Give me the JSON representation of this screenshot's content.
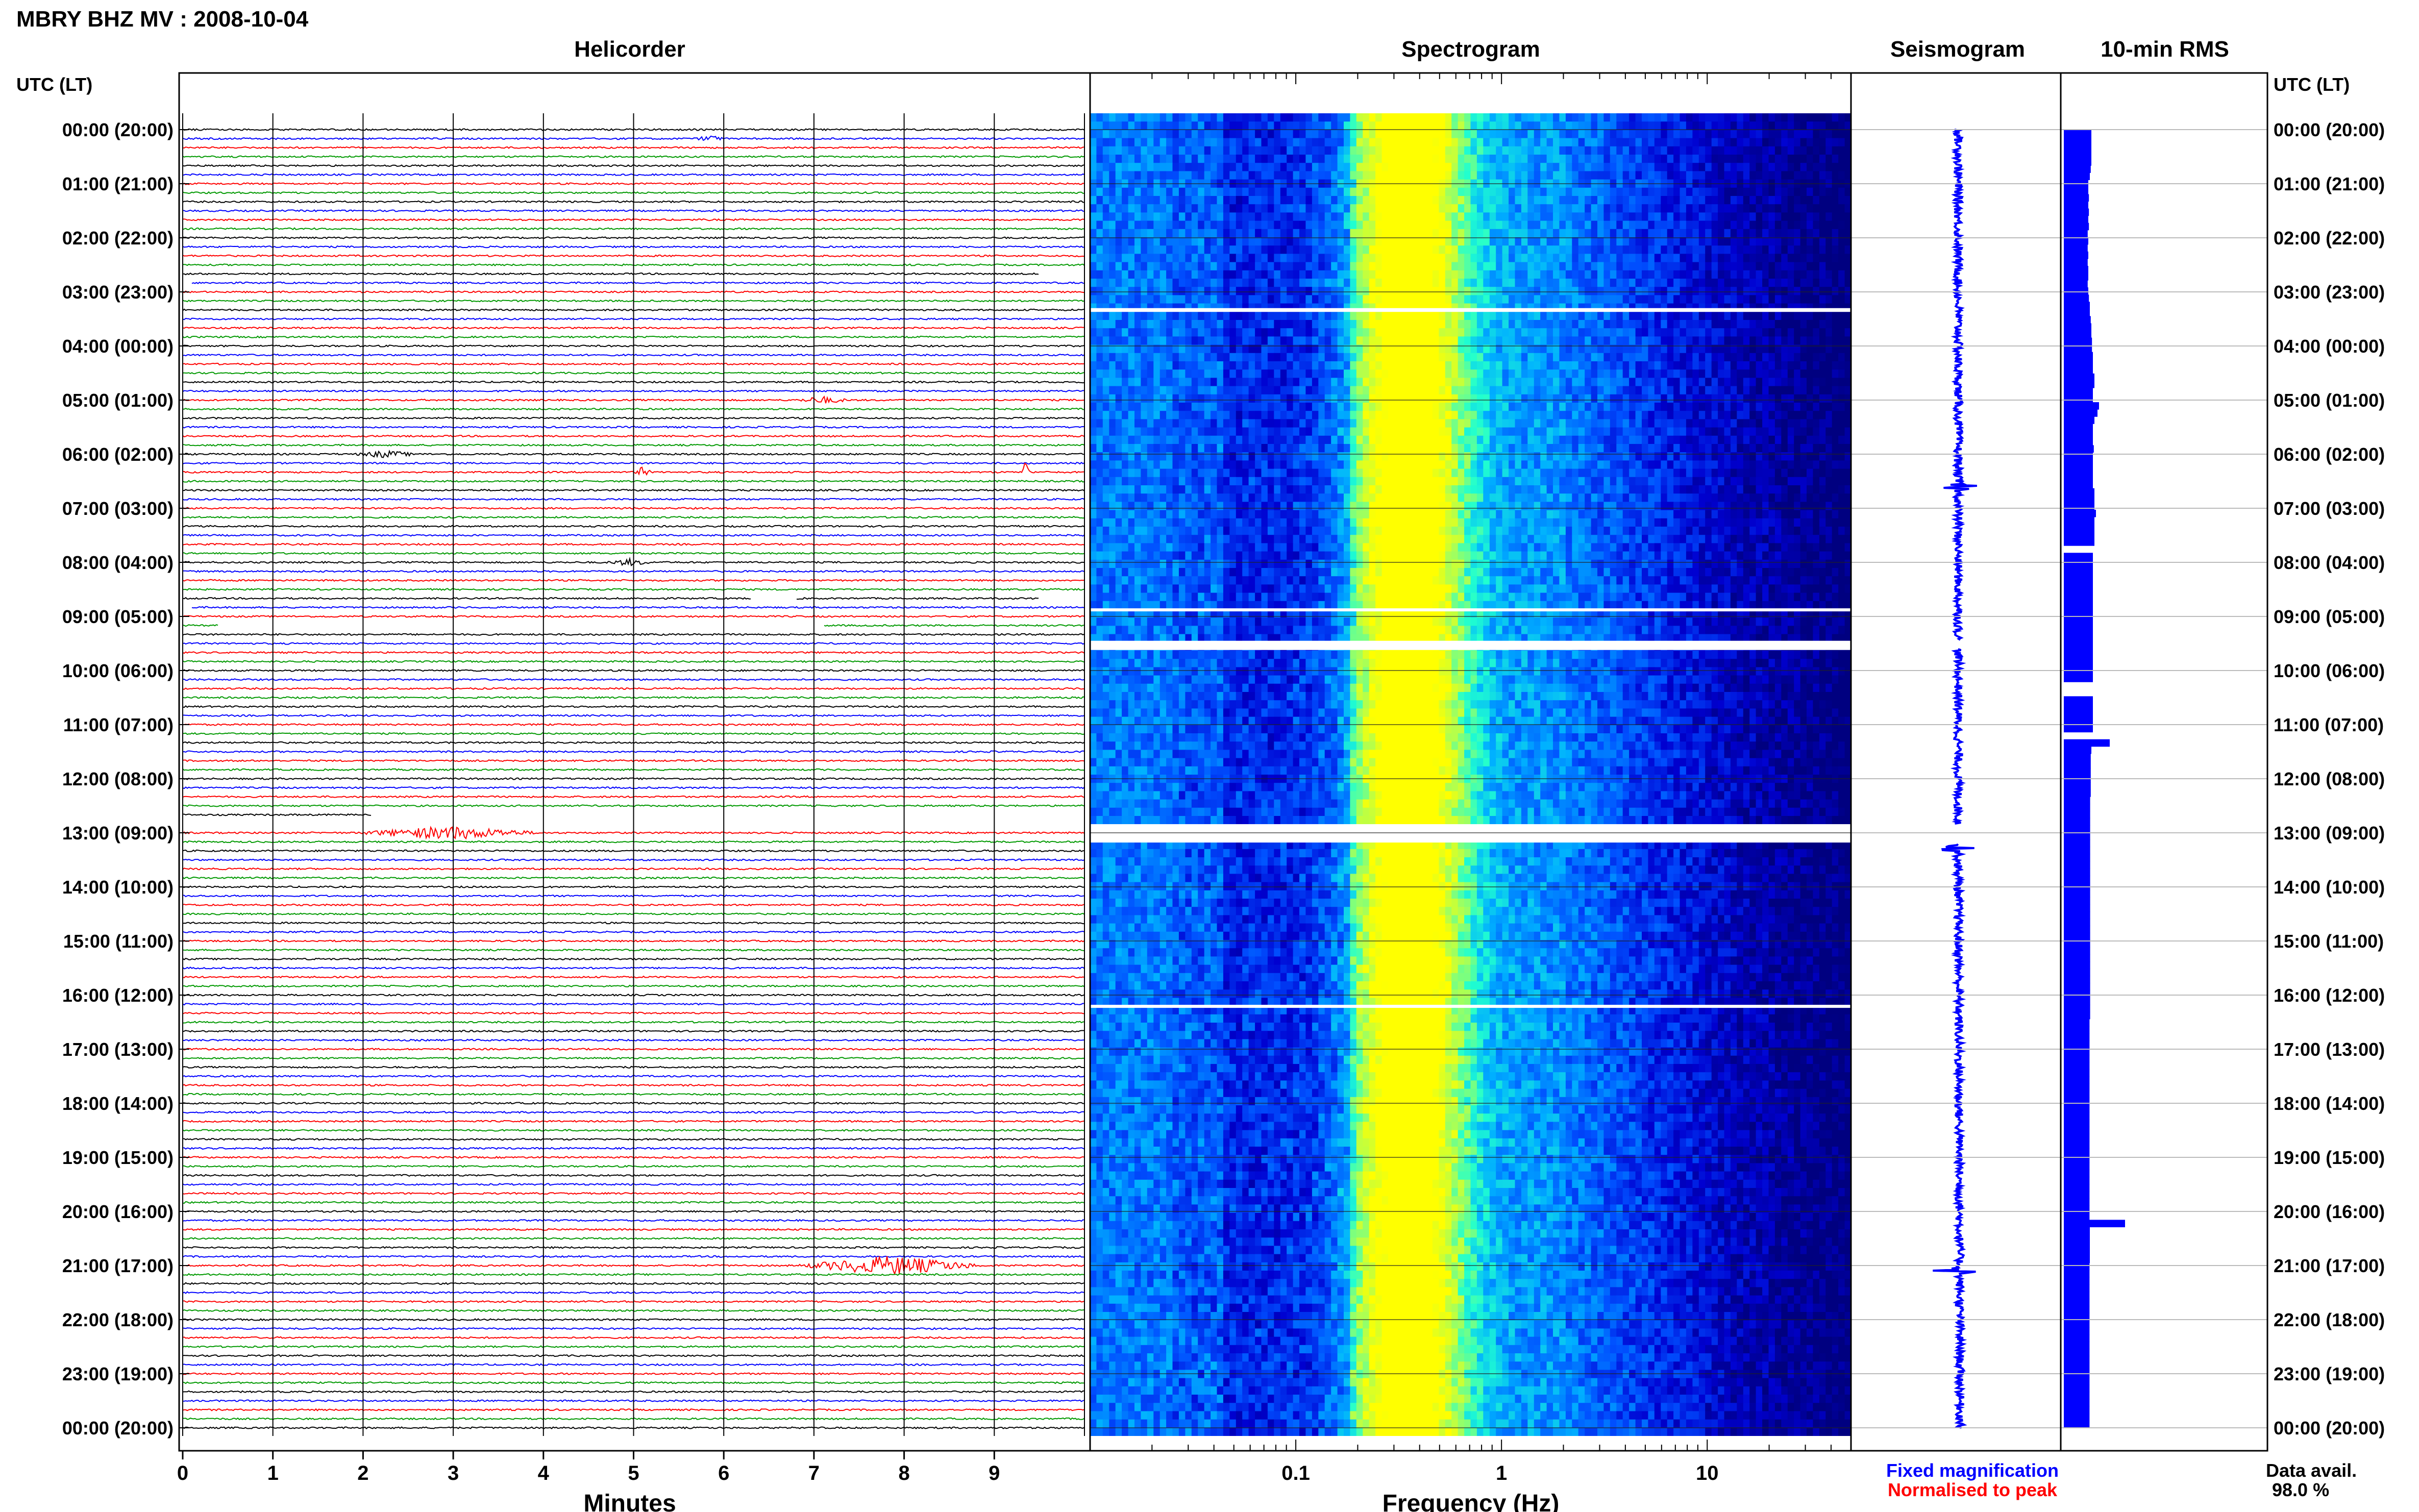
{
  "figure": {
    "title": "MBRY BHZ MV : 2008-10-04",
    "utc_header_left": "UTC (LT)",
    "utc_header_right": "UTC (LT)",
    "legend": {
      "fixed": "Fixed magnification",
      "normalised": "Normalised to peak",
      "fixed_color": "#0000ff",
      "normalised_color": "#ff0000"
    },
    "data_avail_label": "Data avail.",
    "data_avail_value": "98.0 %"
  },
  "chart_data": [
    {
      "type": "line",
      "panel": "Helicorder",
      "title": "Helicorder",
      "xlabel": "Minutes",
      "x_ticks": [
        "0",
        "1",
        "2",
        "3",
        "4",
        "5",
        "6",
        "7",
        "8",
        "9"
      ],
      "xlim": [
        0,
        10
      ],
      "trace_colors": [
        "#000000",
        "#0000ff",
        "#ff0000",
        "#009900"
      ],
      "trace_color_cycle_order": [
        "black",
        "blue",
        "red",
        "green"
      ],
      "row_minutes": 10,
      "rows_per_hour": 6,
      "events": [
        {
          "hour": 0,
          "row": 1,
          "start_min": 5.7,
          "end_min": 6.0,
          "amp": 2
        },
        {
          "hour": 5,
          "row": 0,
          "start_min": 6.8,
          "end_min": 7.4,
          "amp": 2
        },
        {
          "hour": 6,
          "row": 0,
          "start_min": 1.9,
          "end_min": 2.6,
          "amp": 2
        },
        {
          "hour": 6,
          "row": 2,
          "start_min": 5.0,
          "end_min": 5.2,
          "amp": 3
        },
        {
          "hour": 6,
          "row": 2,
          "start_min": 9.3,
          "end_min": 9.4,
          "amp": 9
        },
        {
          "hour": 8,
          "row": 0,
          "start_min": 4.7,
          "end_min": 5.2,
          "amp": 2
        },
        {
          "hour": 13,
          "row": 0,
          "start_min": 1.9,
          "end_min": 4.0,
          "amp": 4
        },
        {
          "hour": 21,
          "row": 0,
          "start_min": 6.8,
          "end_min": 8.9,
          "amp": 6
        }
      ],
      "gaps": [
        {
          "hour": 2,
          "row": 4,
          "start_min": 9.5,
          "end_min": 10
        },
        {
          "hour": 2,
          "row": 5,
          "start_min": 0,
          "end_min": 0.1
        },
        {
          "hour": 8,
          "row": 4,
          "start_min": 6.3,
          "end_min": 6.8
        },
        {
          "hour": 8,
          "row": 4,
          "start_min": 9.5,
          "end_min": 10
        },
        {
          "hour": 8,
          "row": 5,
          "start_min": 0,
          "end_min": 0.1
        },
        {
          "hour": 9,
          "row": 1,
          "start_min": 0.4,
          "end_min": 7.1
        },
        {
          "hour": 12,
          "row": 4,
          "start_min": 2.1,
          "end_min": 10
        },
        {
          "hour": 12,
          "row": 5,
          "start_min": 0,
          "end_min": 10
        }
      ]
    },
    {
      "type": "heatmap",
      "panel": "Spectrogram",
      "title": "Spectrogram",
      "xlabel": "Frequency (Hz)",
      "x_scale": "log",
      "xlim": [
        0.01,
        50
      ],
      "x_ticks": [
        "0.1",
        "1",
        "10"
      ],
      "colormap": [
        "#000080",
        "#0000d0",
        "#0050ff",
        "#00b0ff",
        "#20ffd0",
        "#b0ff50",
        "#ffff00"
      ],
      "gaps_hours": [
        [
          3.3,
          3.37
        ],
        [
          8.85,
          8.9
        ],
        [
          9.45,
          9.62
        ],
        [
          12.84,
          13.18
        ],
        [
          16.18,
          16.22
        ]
      ]
    },
    {
      "type": "line",
      "panel": "Seismogram",
      "title": "Seismogram",
      "color": "#0000ff",
      "events_hours": [
        6.6,
        13.3,
        21.1
      ],
      "gaps_hours": [
        [
          9.45,
          9.6
        ],
        [
          12.84,
          13.2
        ]
      ]
    },
    {
      "type": "bar",
      "panel": "10-min RMS",
      "title": "10-min RMS",
      "color": "#0000ff",
      "orientation": "horizontal",
      "values": [
        0.9,
        0.9,
        0.9,
        0.9,
        0.9,
        0.88,
        0.85,
        0.8,
        0.8,
        0.82,
        0.8,
        0.82,
        0.8,
        0.82,
        0.78,
        0.8,
        0.78,
        0.8,
        0.78,
        0.8,
        0.8,
        0.78,
        0.8,
        0.82,
        0.85,
        0.85,
        0.88,
        0.9,
        0.9,
        0.92,
        0.92,
        0.95,
        0.95,
        0.95,
        1.0,
        1.0,
        0.95,
        0.95,
        1.15,
        1.1,
        1.0,
        0.95,
        0.95,
        0.95,
        0.98,
        0.95,
        0.95,
        0.95,
        0.95,
        0.95,
        1.0,
        1.0,
        1.0,
        1.05,
        1.0,
        1.0,
        1.0,
        1.0,
        0.0,
        0.95,
        0.95,
        0.95,
        0.95,
        0.95,
        0.95,
        0.95,
        0.95,
        0.95,
        0.95,
        0.95,
        0.95,
        0.95,
        0.95,
        0.95,
        0.95,
        0.95,
        0.95,
        0.0,
        0.0,
        0.95,
        0.95,
        0.95,
        0.95,
        0.95,
        0.0,
        1.5,
        0.9,
        0.88,
        0.88,
        0.88,
        0.88,
        0.88,
        0.88,
        0.86,
        0.86,
        0.86,
        0.86,
        0.86,
        0.86,
        0.86,
        0.86,
        0.86,
        0.86,
        0.86,
        0.86,
        0.86,
        0.86,
        0.86,
        0.86,
        0.86,
        0.86,
        0.86,
        0.86,
        0.86,
        0.86,
        0.86,
        0.86,
        0.86,
        0.86,
        0.86,
        0.86,
        0.86,
        0.86,
        0.86,
        0.84,
        0.84,
        0.84,
        0.84,
        0.84,
        0.84,
        0.84,
        0.84,
        0.84,
        0.84,
        0.84,
        0.84,
        0.84,
        0.84,
        0.84,
        0.84,
        0.84,
        0.84,
        0.84,
        0.84,
        0.84,
        0.84,
        0.84,
        0.84,
        0.84,
        0.84,
        0.84,
        0.84,
        2.0,
        0.85,
        0.85,
        0.85,
        0.85,
        0.85,
        0.84,
        0.84,
        0.84,
        0.84,
        0.84,
        0.84,
        0.84,
        0.84,
        0.84,
        0.84,
        0.84,
        0.84,
        0.84,
        0.84,
        0.84,
        0.84,
        0.84,
        0.84,
        0.84,
        0.84,
        0.84,
        0.84,
        0.84
      ],
      "xlim": [
        0,
        5
      ]
    }
  ],
  "time_labels": [
    "00:00 (20:00)",
    "01:00 (21:00)",
    "02:00 (22:00)",
    "03:00 (23:00)",
    "04:00 (00:00)",
    "05:00 (01:00)",
    "06:00 (02:00)",
    "07:00 (03:00)",
    "08:00 (04:00)",
    "09:00 (05:00)",
    "10:00 (06:00)",
    "11:00 (07:00)",
    "12:00 (08:00)",
    "13:00 (09:00)",
    "14:00 (10:00)",
    "15:00 (11:00)",
    "16:00 (12:00)",
    "17:00 (13:00)",
    "18:00 (14:00)",
    "19:00 (15:00)",
    "20:00 (16:00)",
    "21:00 (17:00)",
    "22:00 (18:00)",
    "23:00 (19:00)",
    "00:00 (20:00)"
  ]
}
